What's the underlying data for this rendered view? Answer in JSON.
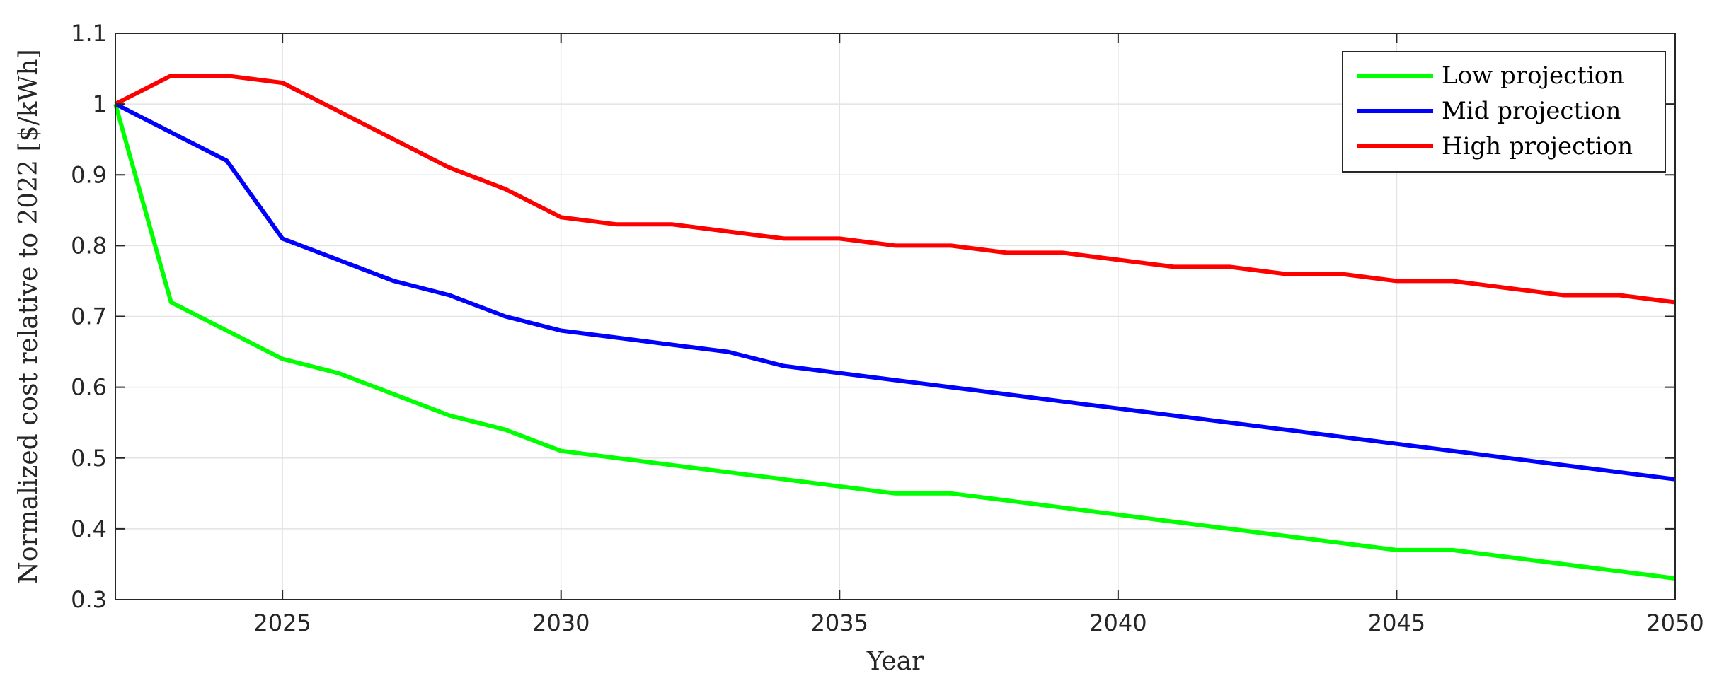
{
  "chart_data": {
    "type": "line",
    "xlabel": "Year",
    "ylabel": "Normalized cost relative to 2022 [$/kWh]",
    "xlim": [
      2022,
      2050
    ],
    "ylim": [
      0.3,
      1.1
    ],
    "x_ticks": [
      2025,
      2030,
      2035,
      2040,
      2045,
      2050
    ],
    "y_ticks": [
      0.3,
      0.4,
      0.5,
      0.6,
      0.7,
      0.8,
      0.9,
      1,
      1.1
    ],
    "y_tick_labels": [
      "0.3",
      "0.4",
      "0.5",
      "0.6",
      "0.7",
      "0.8",
      "0.9",
      "1",
      "1.1"
    ],
    "grid": true,
    "legend_position": "top-right",
    "x": [
      2022,
      2023,
      2024,
      2025,
      2026,
      2027,
      2028,
      2029,
      2030,
      2031,
      2032,
      2033,
      2034,
      2035,
      2036,
      2037,
      2038,
      2039,
      2040,
      2041,
      2042,
      2043,
      2044,
      2045,
      2046,
      2047,
      2048,
      2049,
      2050
    ],
    "series": [
      {
        "name": "Low projection",
        "color": "#00ff00",
        "values": [
          1.0,
          0.72,
          0.68,
          0.64,
          0.62,
          0.59,
          0.56,
          0.54,
          0.51,
          0.5,
          0.49,
          0.48,
          0.47,
          0.46,
          0.45,
          0.45,
          0.44,
          0.43,
          0.42,
          0.41,
          0.4,
          0.39,
          0.38,
          0.37,
          0.37,
          0.36,
          0.35,
          0.34,
          0.33
        ]
      },
      {
        "name": "Mid projection",
        "color": "#0000ff",
        "values": [
          1.0,
          0.96,
          0.92,
          0.81,
          0.78,
          0.75,
          0.73,
          0.7,
          0.68,
          0.67,
          0.66,
          0.65,
          0.63,
          0.62,
          0.61,
          0.6,
          0.59,
          0.58,
          0.57,
          0.56,
          0.55,
          0.54,
          0.53,
          0.52,
          0.51,
          0.5,
          0.49,
          0.48,
          0.47
        ]
      },
      {
        "name": "High projection",
        "color": "#ff0000",
        "values": [
          1.0,
          1.04,
          1.04,
          1.03,
          0.99,
          0.95,
          0.91,
          0.88,
          0.84,
          0.83,
          0.83,
          0.82,
          0.81,
          0.81,
          0.8,
          0.8,
          0.79,
          0.79,
          0.78,
          0.77,
          0.77,
          0.76,
          0.76,
          0.75,
          0.75,
          0.74,
          0.73,
          0.73,
          0.72
        ]
      }
    ]
  }
}
